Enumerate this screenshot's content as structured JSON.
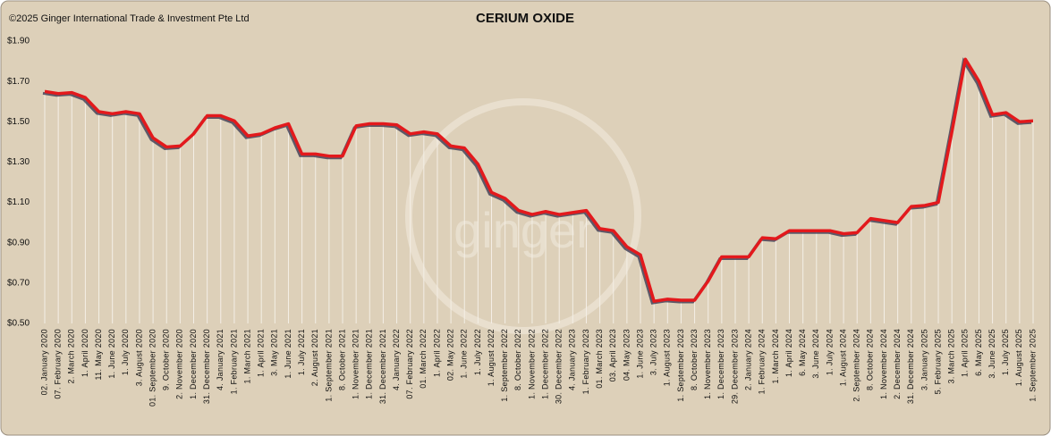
{
  "chart_data": {
    "type": "line",
    "title": "CERIUM OXIDE",
    "copyright": "©2025 Ginger International Trade & Investment Pte Ltd",
    "watermark": "ginger",
    "categories": [
      "02. January 2020",
      "07. February 2020",
      "2. March 2020",
      "1. April 2020",
      "11. May 2020",
      "1. June 2020",
      "1. July 2020",
      "3. August 2020",
      "01. September 2020",
      "9. October 2020",
      "2. November 2020",
      "1. December 2020",
      "31. December 2020",
      "4. January 2021",
      "1. February 2021",
      "1. March 2021",
      "1. April 2021",
      "3. May 2021",
      "1. June 2021",
      "1. July 2021",
      "2. August 2021",
      "1. September 2021",
      "8. October 2021",
      "1. November 2021",
      "1. December 2021",
      "31. December 2021",
      "4. January 2022",
      "07. February 2022",
      "01. March 2022",
      "1. April 2022",
      "02. May 2022",
      "1. June 2022",
      "1. July 2022",
      "1. August 2022",
      "1. September 2022",
      "8. October 2022",
      "1. November 2022",
      "1. December 2022",
      "30. December 2022",
      "4. January 2023",
      "1. February 2023",
      "01. March 2023",
      "03. April 2023",
      "04. May 2023",
      "1. June 2023",
      "3. July 2023",
      "1. August 2023",
      "1. September 2023",
      "8. October 2023",
      "1. November 2023",
      "1. December 2023",
      "29. December 2023",
      "2. January 2024",
      "1. February 2024",
      "1. March 2024",
      "1. April 2024",
      "6. May 2024",
      "3. June 2024",
      "1. July 2024",
      "1. August 2024",
      "2. September 2024",
      "8. October 2024",
      "1. November 2024",
      "2. December 2024",
      "31. December 2024",
      "3. January 2025",
      "5. February 2025",
      "3. March 2025",
      "1. April 2025",
      "6. May 2025",
      "3. June 2025",
      "1. July 2025",
      "1. August 2025",
      "1. September 2025"
    ],
    "series": [
      {
        "name": "Cerium Oxide",
        "color": "#e3191c",
        "values": [
          1.65,
          1.64,
          1.645,
          1.62,
          1.55,
          1.54,
          1.55,
          1.54,
          1.42,
          1.375,
          1.38,
          1.44,
          1.53,
          1.53,
          1.505,
          1.43,
          1.44,
          1.47,
          1.49,
          1.34,
          1.34,
          1.33,
          1.33,
          1.48,
          1.49,
          1.49,
          1.485,
          1.44,
          1.45,
          1.44,
          1.38,
          1.37,
          1.29,
          1.15,
          1.12,
          1.06,
          1.04,
          1.055,
          1.04,
          1.05,
          1.06,
          0.97,
          0.96,
          0.88,
          0.84,
          0.61,
          0.62,
          0.615,
          0.615,
          0.71,
          0.83,
          0.83,
          0.83,
          0.925,
          0.92,
          0.96,
          0.96,
          0.96,
          0.96,
          0.945,
          0.95,
          1.02,
          1.01,
          1.0,
          1.08,
          1.085,
          1.1,
          1.45,
          1.81,
          1.7,
          1.535,
          1.545,
          1.5,
          1.505
        ]
      }
    ],
    "ylim": [
      0.5,
      1.9
    ],
    "yticks": [
      {
        "value": 0.5,
        "label": "$0.50"
      },
      {
        "value": 0.7,
        "label": "$0.70"
      },
      {
        "value": 0.9,
        "label": "$0.90"
      },
      {
        "value": 1.1,
        "label": "$1.10"
      },
      {
        "value": 1.3,
        "label": "$1.30"
      },
      {
        "value": 1.5,
        "label": "$1.50"
      },
      {
        "value": 1.7,
        "label": "$1.70"
      },
      {
        "value": 1.9,
        "label": "$1.90"
      }
    ],
    "grid": false,
    "drop_lines": true
  }
}
